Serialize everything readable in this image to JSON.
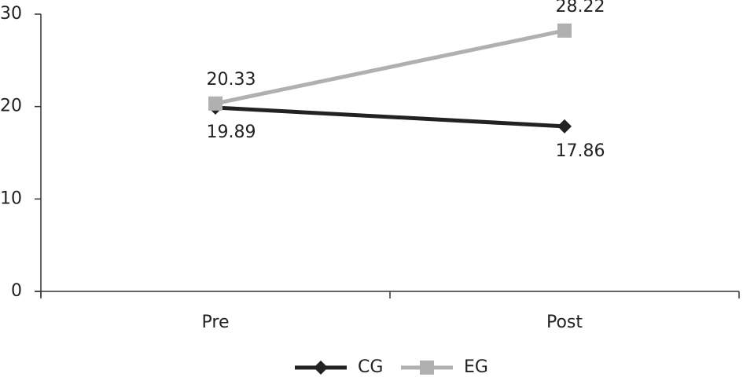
{
  "chart_data": {
    "type": "line",
    "categories": [
      "Pre",
      "Post"
    ],
    "series": [
      {
        "name": "CG",
        "color": "#222222",
        "marker": "diamond",
        "values": [
          19.89,
          17.86
        ]
      },
      {
        "name": "EG",
        "color": "#b0b0b0",
        "marker": "square",
        "values": [
          20.33,
          28.22
        ]
      }
    ],
    "ylim": [
      0,
      30
    ],
    "yticks": [
      0,
      10,
      20,
      30
    ],
    "legend": "bottom"
  }
}
